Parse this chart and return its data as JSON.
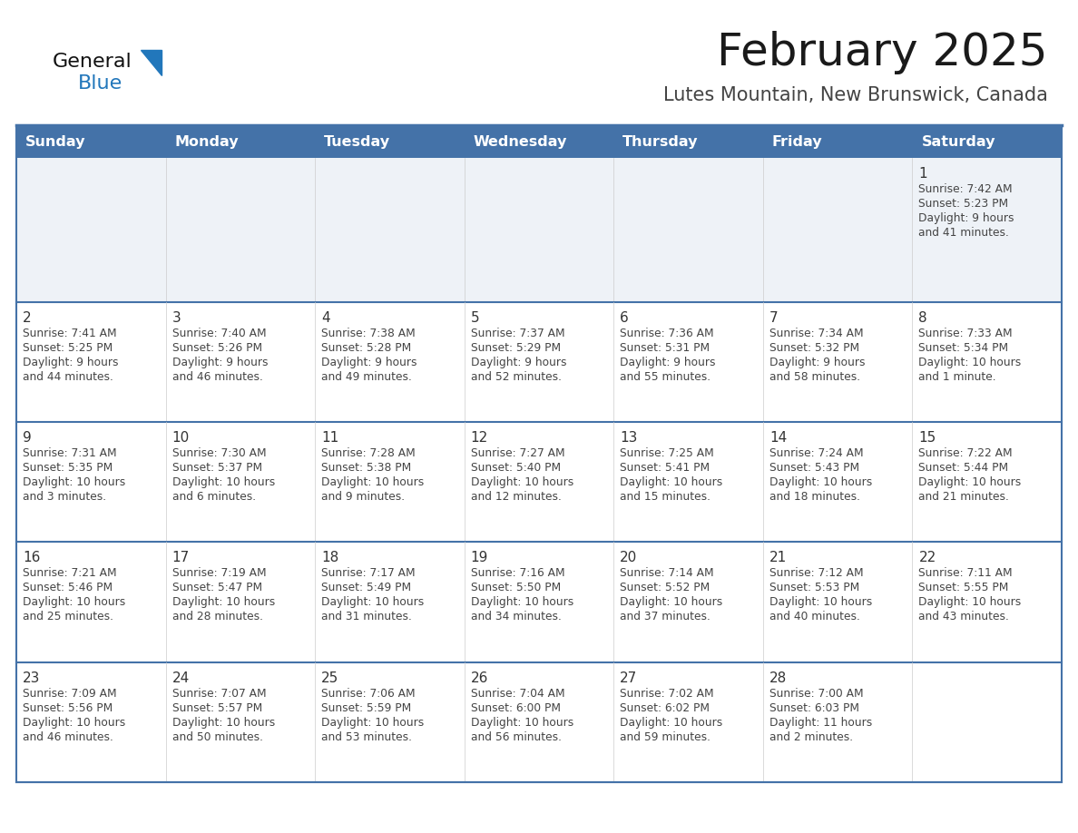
{
  "title": "February 2025",
  "subtitle": "Lutes Mountain, New Brunswick, Canada",
  "header_bg": "#4472a8",
  "header_text": "#ffffff",
  "week1_bg": "#eef2f7",
  "week_bg": "#ffffff",
  "divider_color": "#4472a8",
  "cell_border_color": "#cccccc",
  "day_headers": [
    "Sunday",
    "Monday",
    "Tuesday",
    "Wednesday",
    "Thursday",
    "Friday",
    "Saturday"
  ],
  "title_color": "#1a1a1a",
  "subtitle_color": "#444444",
  "cell_text_color": "#444444",
  "day_num_color": "#333333",
  "logo_general_color": "#111111",
  "logo_blue_color": "#2277bb",
  "logo_triangle_color": "#2277bb",
  "weeks": [
    [
      null,
      null,
      null,
      null,
      null,
      null,
      {
        "day": 1,
        "sunrise": "7:42 AM",
        "sunset": "5:23 PM",
        "daylight": "9 hours\nand 41 minutes."
      }
    ],
    [
      {
        "day": 2,
        "sunrise": "7:41 AM",
        "sunset": "5:25 PM",
        "daylight": "9 hours\nand 44 minutes."
      },
      {
        "day": 3,
        "sunrise": "7:40 AM",
        "sunset": "5:26 PM",
        "daylight": "9 hours\nand 46 minutes."
      },
      {
        "day": 4,
        "sunrise": "7:38 AM",
        "sunset": "5:28 PM",
        "daylight": "9 hours\nand 49 minutes."
      },
      {
        "day": 5,
        "sunrise": "7:37 AM",
        "sunset": "5:29 PM",
        "daylight": "9 hours\nand 52 minutes."
      },
      {
        "day": 6,
        "sunrise": "7:36 AM",
        "sunset": "5:31 PM",
        "daylight": "9 hours\nand 55 minutes."
      },
      {
        "day": 7,
        "sunrise": "7:34 AM",
        "sunset": "5:32 PM",
        "daylight": "9 hours\nand 58 minutes."
      },
      {
        "day": 8,
        "sunrise": "7:33 AM",
        "sunset": "5:34 PM",
        "daylight": "10 hours\nand 1 minute."
      }
    ],
    [
      {
        "day": 9,
        "sunrise": "7:31 AM",
        "sunset": "5:35 PM",
        "daylight": "10 hours\nand 3 minutes."
      },
      {
        "day": 10,
        "sunrise": "7:30 AM",
        "sunset": "5:37 PM",
        "daylight": "10 hours\nand 6 minutes."
      },
      {
        "day": 11,
        "sunrise": "7:28 AM",
        "sunset": "5:38 PM",
        "daylight": "10 hours\nand 9 minutes."
      },
      {
        "day": 12,
        "sunrise": "7:27 AM",
        "sunset": "5:40 PM",
        "daylight": "10 hours\nand 12 minutes."
      },
      {
        "day": 13,
        "sunrise": "7:25 AM",
        "sunset": "5:41 PM",
        "daylight": "10 hours\nand 15 minutes."
      },
      {
        "day": 14,
        "sunrise": "7:24 AM",
        "sunset": "5:43 PM",
        "daylight": "10 hours\nand 18 minutes."
      },
      {
        "day": 15,
        "sunrise": "7:22 AM",
        "sunset": "5:44 PM",
        "daylight": "10 hours\nand 21 minutes."
      }
    ],
    [
      {
        "day": 16,
        "sunrise": "7:21 AM",
        "sunset": "5:46 PM",
        "daylight": "10 hours\nand 25 minutes."
      },
      {
        "day": 17,
        "sunrise": "7:19 AM",
        "sunset": "5:47 PM",
        "daylight": "10 hours\nand 28 minutes."
      },
      {
        "day": 18,
        "sunrise": "7:17 AM",
        "sunset": "5:49 PM",
        "daylight": "10 hours\nand 31 minutes."
      },
      {
        "day": 19,
        "sunrise": "7:16 AM",
        "sunset": "5:50 PM",
        "daylight": "10 hours\nand 34 minutes."
      },
      {
        "day": 20,
        "sunrise": "7:14 AM",
        "sunset": "5:52 PM",
        "daylight": "10 hours\nand 37 minutes."
      },
      {
        "day": 21,
        "sunrise": "7:12 AM",
        "sunset": "5:53 PM",
        "daylight": "10 hours\nand 40 minutes."
      },
      {
        "day": 22,
        "sunrise": "7:11 AM",
        "sunset": "5:55 PM",
        "daylight": "10 hours\nand 43 minutes."
      }
    ],
    [
      {
        "day": 23,
        "sunrise": "7:09 AM",
        "sunset": "5:56 PM",
        "daylight": "10 hours\nand 46 minutes."
      },
      {
        "day": 24,
        "sunrise": "7:07 AM",
        "sunset": "5:57 PM",
        "daylight": "10 hours\nand 50 minutes."
      },
      {
        "day": 25,
        "sunrise": "7:06 AM",
        "sunset": "5:59 PM",
        "daylight": "10 hours\nand 53 minutes."
      },
      {
        "day": 26,
        "sunrise": "7:04 AM",
        "sunset": "6:00 PM",
        "daylight": "10 hours\nand 56 minutes."
      },
      {
        "day": 27,
        "sunrise": "7:02 AM",
        "sunset": "6:02 PM",
        "daylight": "10 hours\nand 59 minutes."
      },
      {
        "day": 28,
        "sunrise": "7:00 AM",
        "sunset": "6:03 PM",
        "daylight": "11 hours\nand 2 minutes."
      },
      null
    ]
  ]
}
